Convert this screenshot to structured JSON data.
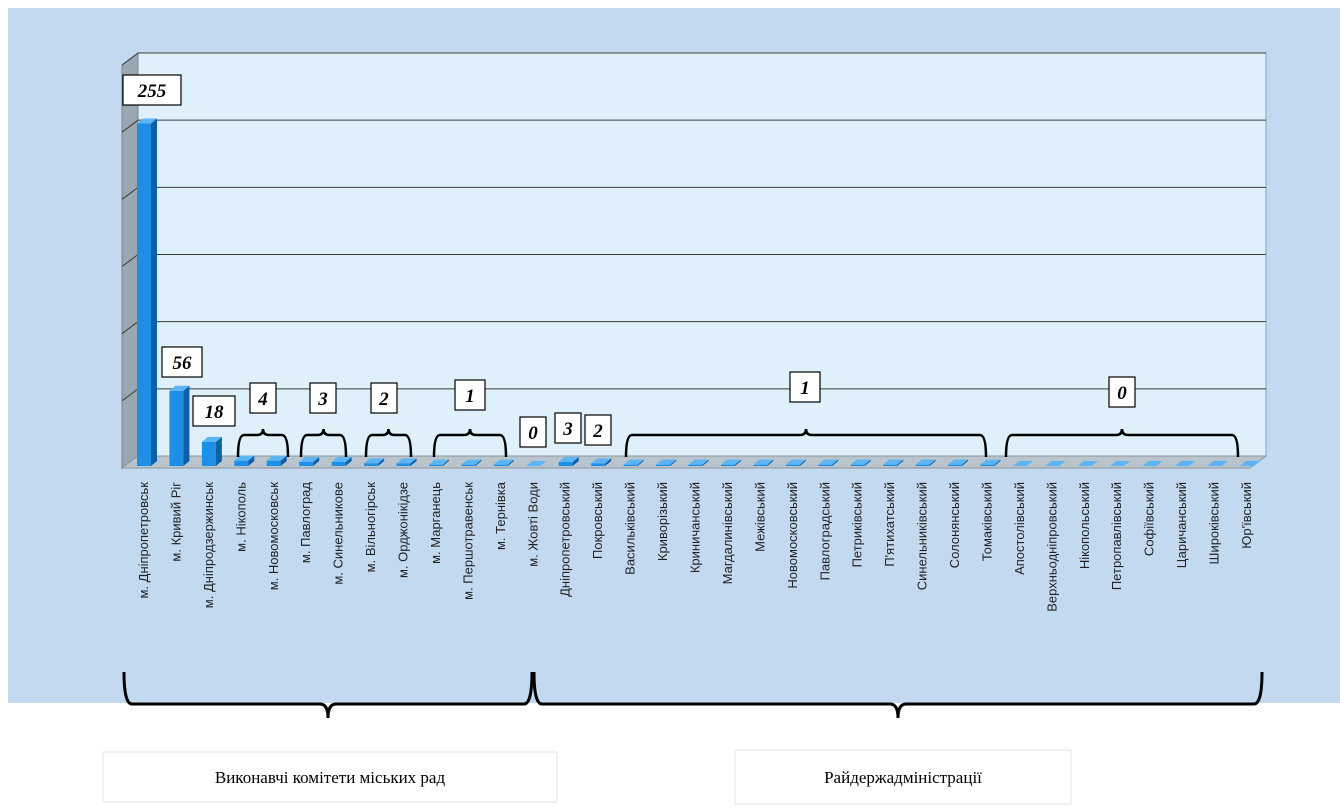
{
  "chart_data": {
    "type": "bar",
    "title": "",
    "xlabel": "",
    "ylabel": "",
    "ylim": [
      0,
      300
    ],
    "grid": true,
    "categories": [
      "м. Дніпропетровськ",
      "м. Кривий Ріг",
      "м. Дніпродзержинськ",
      "м. Нікополь",
      "м. Новомосковськ",
      "м. Павлоград",
      "м. Синельникове",
      "м. Вільногірськ",
      "м. Орджонікідзе",
      "м. Марганець",
      "м. Першотравенськ",
      "м. Тернівка",
      "м. Жовті Води",
      "Дніпропетровський",
      "Покровський",
      "Васильківський",
      "Криворізький",
      "Криничанський",
      "Магдалинівський",
      "Межівський",
      "Новомосковський",
      "Павлоградський",
      "Петриківський",
      "П'ятихатський",
      "Синельниківський",
      "Солонянський",
      "Томаківський",
      "Апостолівський",
      "Верхньодніпровський",
      "Нікопольський",
      "Петропавлівський",
      "Софіївський",
      "Царичанський",
      "Широківський",
      "Юр'ївський"
    ],
    "values": [
      255,
      56,
      18,
      4,
      4,
      3,
      3,
      2,
      2,
      1,
      1,
      1,
      0,
      3,
      2,
      1,
      1,
      1,
      1,
      1,
      1,
      1,
      1,
      1,
      1,
      1,
      1,
      0,
      0,
      0,
      0,
      0,
      0,
      0,
      0
    ],
    "value_labels": [
      {
        "text": "255"
      },
      {
        "text": "56"
      },
      {
        "text": "18"
      },
      {
        "text": "4"
      },
      {
        "text": "3"
      },
      {
        "text": "2"
      },
      {
        "text": "1"
      },
      {
        "text": "0"
      },
      {
        "text": "3"
      },
      {
        "text": "2"
      },
      {
        "text": "1"
      },
      {
        "text": "0"
      }
    ],
    "groups": [
      {
        "label": "Виконавчі комітети міських рад",
        "from": 0,
        "to": 12
      },
      {
        "label": "Райдержадміністрації",
        "from": 13,
        "to": 34
      }
    ],
    "colors": {
      "bar": "#1e8fe6",
      "bar_top": "#5ab4f5",
      "bar_side": "#0d5fa8",
      "plot_bg": "#dff0fb",
      "outer_bg": "#c3d9ef"
    }
  }
}
